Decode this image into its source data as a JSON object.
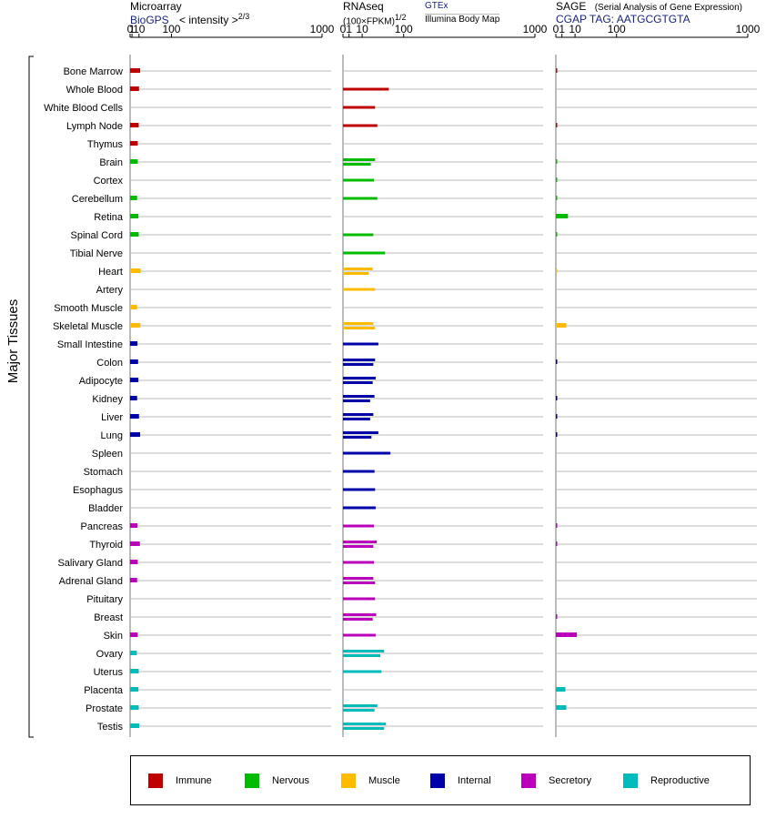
{
  "headers": {
    "microarray_title": "Microarray",
    "microarray_source": "BioGPS",
    "microarray_unit": "< intensity >",
    "microarray_exp": "2/3",
    "rnaseq_title": "RNAseq",
    "rnaseq_unit": "(100×FPKM)",
    "rnaseq_exp": "1/2",
    "rnaseq_source1": "GTEx",
    "rnaseq_source2": "Illumina Body Map",
    "sage_title": "SAGE",
    "sage_subtitle": "(Serial Analysis of Gene Expression)",
    "sage_tag": "CGAP  TAG: AATGCGTGTA"
  },
  "colors": {
    "Immune": "#c00000",
    "Nervous": "#00bb00",
    "Muscle": "#ffbb00",
    "Internal": "#0000aa",
    "Secretory": "#bb00bb",
    "Reproductive": "#00bbbb"
  },
  "legend": [
    {
      "label": "Immune",
      "color": "#c00000"
    },
    {
      "label": "Nervous",
      "color": "#00bb00"
    },
    {
      "label": "Muscle",
      "color": "#ffbb00"
    },
    {
      "label": "Internal",
      "color": "#0000aa"
    },
    {
      "label": "Secretory",
      "color": "#bb00bb"
    },
    {
      "label": "Reproductive",
      "color": "#00bbbb"
    }
  ],
  "chart_data": {
    "type": "bar",
    "ylabel": "Major Tissues",
    "axes": [
      {
        "name": "Microarray",
        "ticks": [
          0,
          1,
          10,
          100,
          1000
        ]
      },
      {
        "name": "RNAseq",
        "ticks": [
          0,
          1,
          10,
          100,
          1000
        ]
      },
      {
        "name": "SAGE",
        "ticks": [
          0,
          1,
          10,
          100,
          1000
        ]
      }
    ],
    "tissues": [
      {
        "name": "Bone Marrow",
        "group": "Immune",
        "microarray": 12,
        "rnaseq": [],
        "sage": 0.04
      },
      {
        "name": "Whole Blood",
        "group": "Immune",
        "microarray": 10,
        "rnaseq": [
          57
        ],
        "sage": null
      },
      {
        "name": "White Blood Cells",
        "group": "Immune",
        "microarray": null,
        "rnaseq": [
          28
        ],
        "sage": null
      },
      {
        "name": "Lymph Node",
        "group": "Immune",
        "microarray": 9.5,
        "rnaseq": [
          32
        ],
        "sage": 0.04
      },
      {
        "name": "Thymus",
        "group": "Immune",
        "microarray": 8,
        "rnaseq": [],
        "sage": null
      },
      {
        "name": "Brain",
        "group": "Nervous",
        "microarray": 8,
        "rnaseq": [
          28,
          21
        ],
        "sage": 0.02
      },
      {
        "name": "Cortex",
        "group": "Nervous",
        "microarray": null,
        "rnaseq": [
          26
        ],
        "sage": 0.02
      },
      {
        "name": "Cerebellum",
        "group": "Nervous",
        "microarray": 7,
        "rnaseq": [
          32
        ],
        "sage": 0.02
      },
      {
        "name": "Retina",
        "group": "Nervous",
        "microarray": 9,
        "rnaseq": [],
        "sage": 4
      },
      {
        "name": "Spinal Cord",
        "group": "Nervous",
        "microarray": 9.5,
        "rnaseq": [
          25
        ],
        "sage": 0.02
      },
      {
        "name": "Tibial Nerve",
        "group": "Nervous",
        "microarray": null,
        "rnaseq": [
          48
        ],
        "sage": null
      },
      {
        "name": "Heart",
        "group": "Muscle",
        "microarray": 13,
        "rnaseq": [
          24,
          18
        ],
        "sage": 0.01
      },
      {
        "name": "Artery",
        "group": "Muscle",
        "microarray": null,
        "rnaseq": [
          28
        ],
        "sage": null
      },
      {
        "name": "Smooth Muscle",
        "group": "Muscle",
        "microarray": 7,
        "rnaseq": [],
        "sage": null
      },
      {
        "name": "Skeletal Muscle",
        "group": "Muscle",
        "microarray": 12.5,
        "rnaseq": [
          25,
          28
        ],
        "sage": 3
      },
      {
        "name": "Small Intestine",
        "group": "Internal",
        "microarray": 7.5,
        "rnaseq": [
          34
        ],
        "sage": null
      },
      {
        "name": "Colon",
        "group": "Internal",
        "microarray": 8.5,
        "rnaseq": [
          28,
          25
        ],
        "sage": 0.03
      },
      {
        "name": "Adipocyte",
        "group": "Internal",
        "microarray": 9,
        "rnaseq": [
          29,
          24
        ],
        "sage": null
      },
      {
        "name": "Kidney",
        "group": "Internal",
        "microarray": 7,
        "rnaseq": [
          27,
          20
        ],
        "sage": 0.03
      },
      {
        "name": "Liver",
        "group": "Internal",
        "microarray": 10,
        "rnaseq": [
          25,
          20
        ],
        "sage": 0.03
      },
      {
        "name": "Lung",
        "group": "Internal",
        "microarray": 12,
        "rnaseq": [
          34,
          22
        ],
        "sage": 0.03
      },
      {
        "name": "Spleen",
        "group": "Internal",
        "microarray": null,
        "rnaseq": [
          61
        ],
        "sage": null
      },
      {
        "name": "Stomach",
        "group": "Internal",
        "microarray": null,
        "rnaseq": [
          27
        ],
        "sage": null
      },
      {
        "name": "Esophagus",
        "group": "Internal",
        "microarray": null,
        "rnaseq": [
          28
        ],
        "sage": null
      },
      {
        "name": "Bladder",
        "group": "Internal",
        "microarray": null,
        "rnaseq": [
          29
        ],
        "sage": null
      },
      {
        "name": "Pancreas",
        "group": "Secretory",
        "microarray": 7.5,
        "rnaseq": [
          26
        ],
        "sage": 0.03
      },
      {
        "name": "Thyroid",
        "group": "Secretory",
        "microarray": 11.5,
        "rnaseq": [
          31,
          25
        ],
        "sage": 0.03
      },
      {
        "name": "Salivary Gland",
        "group": "Secretory",
        "microarray": 8,
        "rnaseq": [
          26
        ],
        "sage": null
      },
      {
        "name": "Adrenal Gland",
        "group": "Secretory",
        "microarray": 7,
        "rnaseq": [
          25,
          28
        ],
        "sage": null
      },
      {
        "name": "Pituitary",
        "group": "Secretory",
        "microarray": null,
        "rnaseq": [
          28
        ],
        "sage": null
      },
      {
        "name": "Breast",
        "group": "Secretory",
        "microarray": null,
        "rnaseq": [
          30,
          24
        ],
        "sage": 0.03
      },
      {
        "name": "Skin",
        "group": "Secretory",
        "microarray": 8,
        "rnaseq": [
          29
        ],
        "sage": 12
      },
      {
        "name": "Ovary",
        "group": "Reproductive",
        "microarray": 6.5,
        "rnaseq": [
          46,
          38
        ],
        "sage": null
      },
      {
        "name": "Uterus",
        "group": "Reproductive",
        "microarray": 9.5,
        "rnaseq": [
          40
        ],
        "sage": null
      },
      {
        "name": "Placenta",
        "group": "Reproductive",
        "microarray": 9,
        "rnaseq": [],
        "sage": 2.5
      },
      {
        "name": "Prostate",
        "group": "Reproductive",
        "microarray": 9.5,
        "rnaseq": [
          32,
          27
        ],
        "sage": 3
      },
      {
        "name": "Testis",
        "group": "Reproductive",
        "microarray": 10.5,
        "rnaseq": [
          50,
          46
        ],
        "sage": null
      }
    ]
  }
}
